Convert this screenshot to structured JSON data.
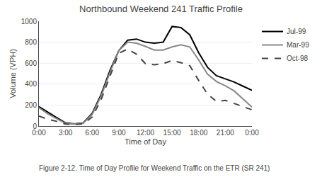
{
  "chart_data": {
    "type": "line",
    "title": "Northbound Weekend 241 Traffic Profile",
    "xlabel": "Time of Day",
    "ylabel": "Volume (VPH)",
    "annotations": [
      "Figure 2-12. Time of Day Profile for Weekend Traffic on the ETR (SR 241)"
    ],
    "x": [
      0,
      1,
      2,
      3,
      4,
      5,
      6,
      7,
      8,
      9,
      10,
      11,
      12,
      13,
      14,
      15,
      16,
      17,
      18,
      19,
      20,
      21,
      22,
      23,
      24
    ],
    "series": [
      {
        "name": "Jul-99",
        "color": "#000000",
        "line_style": "solid",
        "values": [
          185,
          130,
          80,
          30,
          20,
          30,
          120,
          300,
          530,
          720,
          820,
          830,
          800,
          790,
          800,
          950,
          940,
          870,
          700,
          560,
          480,
          450,
          420,
          380,
          340
        ]
      },
      {
        "name": "Mar-99",
        "color": "#888888",
        "line_style": "solid",
        "values": [
          175,
          115,
          70,
          25,
          18,
          28,
          110,
          285,
          510,
          720,
          800,
          790,
          760,
          725,
          725,
          755,
          775,
          755,
          630,
          495,
          425,
          385,
          335,
          255,
          180
        ]
      },
      {
        "name": "Oct-98",
        "color": "#444444",
        "line_style": "dashed",
        "values": [
          95,
          65,
          45,
          18,
          14,
          22,
          85,
          250,
          475,
          695,
          735,
          685,
          595,
          585,
          595,
          625,
          605,
          575,
          435,
          305,
          235,
          245,
          215,
          185,
          155
        ]
      }
    ],
    "xlim": [
      0,
      24
    ],
    "xticks": [
      {
        "value": 0,
        "label": "0:00"
      },
      {
        "value": 3,
        "label": "3:00"
      },
      {
        "value": 6,
        "label": "6:00"
      },
      {
        "value": 9,
        "label": "9:00"
      },
      {
        "value": 12,
        "label": "12:00"
      },
      {
        "value": 15,
        "label": "15:00"
      },
      {
        "value": 18,
        "label": "18:00"
      },
      {
        "value": 21,
        "label": "21:00"
      },
      {
        "value": 24,
        "label": "0:00"
      }
    ],
    "ylim": [
      0,
      1000
    ],
    "yticks": [
      0,
      200,
      400,
      600,
      800,
      1000
    ],
    "grid": "y",
    "legend": "right"
  }
}
